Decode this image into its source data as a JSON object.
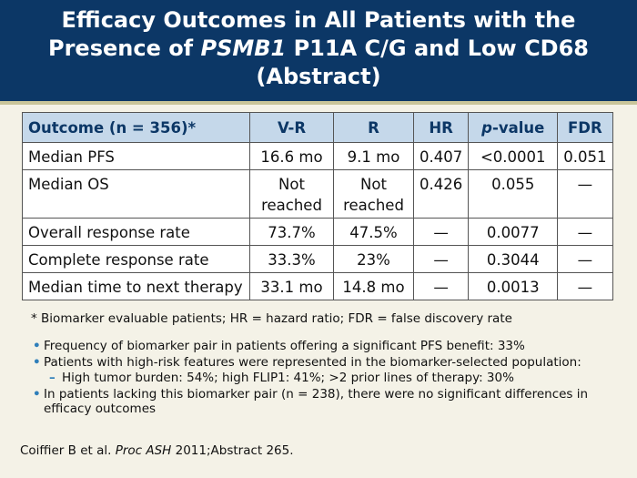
{
  "title": {
    "line1": "Efficacy Outcomes in All Patients with the",
    "line2_prefix": "Presence of ",
    "line2_italic": "PSMB1",
    "line2_suffix": " P11A C/G and Low CD68",
    "line3": "(Abstract)"
  },
  "table": {
    "headers": [
      "Outcome (n = 356)*",
      "V-R",
      "R",
      "HR",
      "-value",
      "FDR"
    ],
    "header_p": "p",
    "rows": [
      {
        "outcome": "Median PFS",
        "vr": "16.6 mo",
        "r": "9.1 mo",
        "hr": "0.407",
        "p": "<0.0001",
        "fdr": "0.051"
      },
      {
        "outcome": "Median OS",
        "vr": "Not reached",
        "r": "Not reached",
        "hr": "0.426",
        "p": "0.055",
        "fdr": "—"
      },
      {
        "outcome": "Overall response rate",
        "vr": "73.7%",
        "r": "47.5%",
        "hr": "—",
        "p": "0.0077",
        "fdr": "—"
      },
      {
        "outcome": "Complete response rate",
        "vr": "33.3%",
        "r": "23%",
        "hr": "—",
        "p": "0.3044",
        "fdr": "—"
      },
      {
        "outcome": "Median time to next therapy",
        "vr": "33.1 mo",
        "r": "14.8 mo",
        "hr": "—",
        "p": "0.0013",
        "fdr": "—"
      }
    ]
  },
  "footnote": "* Biomarker evaluable patients; HR = hazard ratio; FDR = false discovery rate",
  "bullets": [
    "Frequency of biomarker pair in patients offering a significant PFS benefit: 33%",
    "Patients with high-risk features were represented in the biomarker-selected population:",
    "High tumor burden: 54%; high FLIP1: 41%; >2 prior lines of therapy: 30%",
    "In patients lacking this biomarker pair (n = 238), there were no significant differences in efficacy outcomes"
  ],
  "citation": {
    "authors": "Coiffier B et al. ",
    "journal": "Proc ASH",
    "rest": " 2011;Abstract 265."
  },
  "colors": {
    "title_band": "#0c3766",
    "header_fill": "#c5d8ea",
    "bullet": "#2f7fba"
  }
}
